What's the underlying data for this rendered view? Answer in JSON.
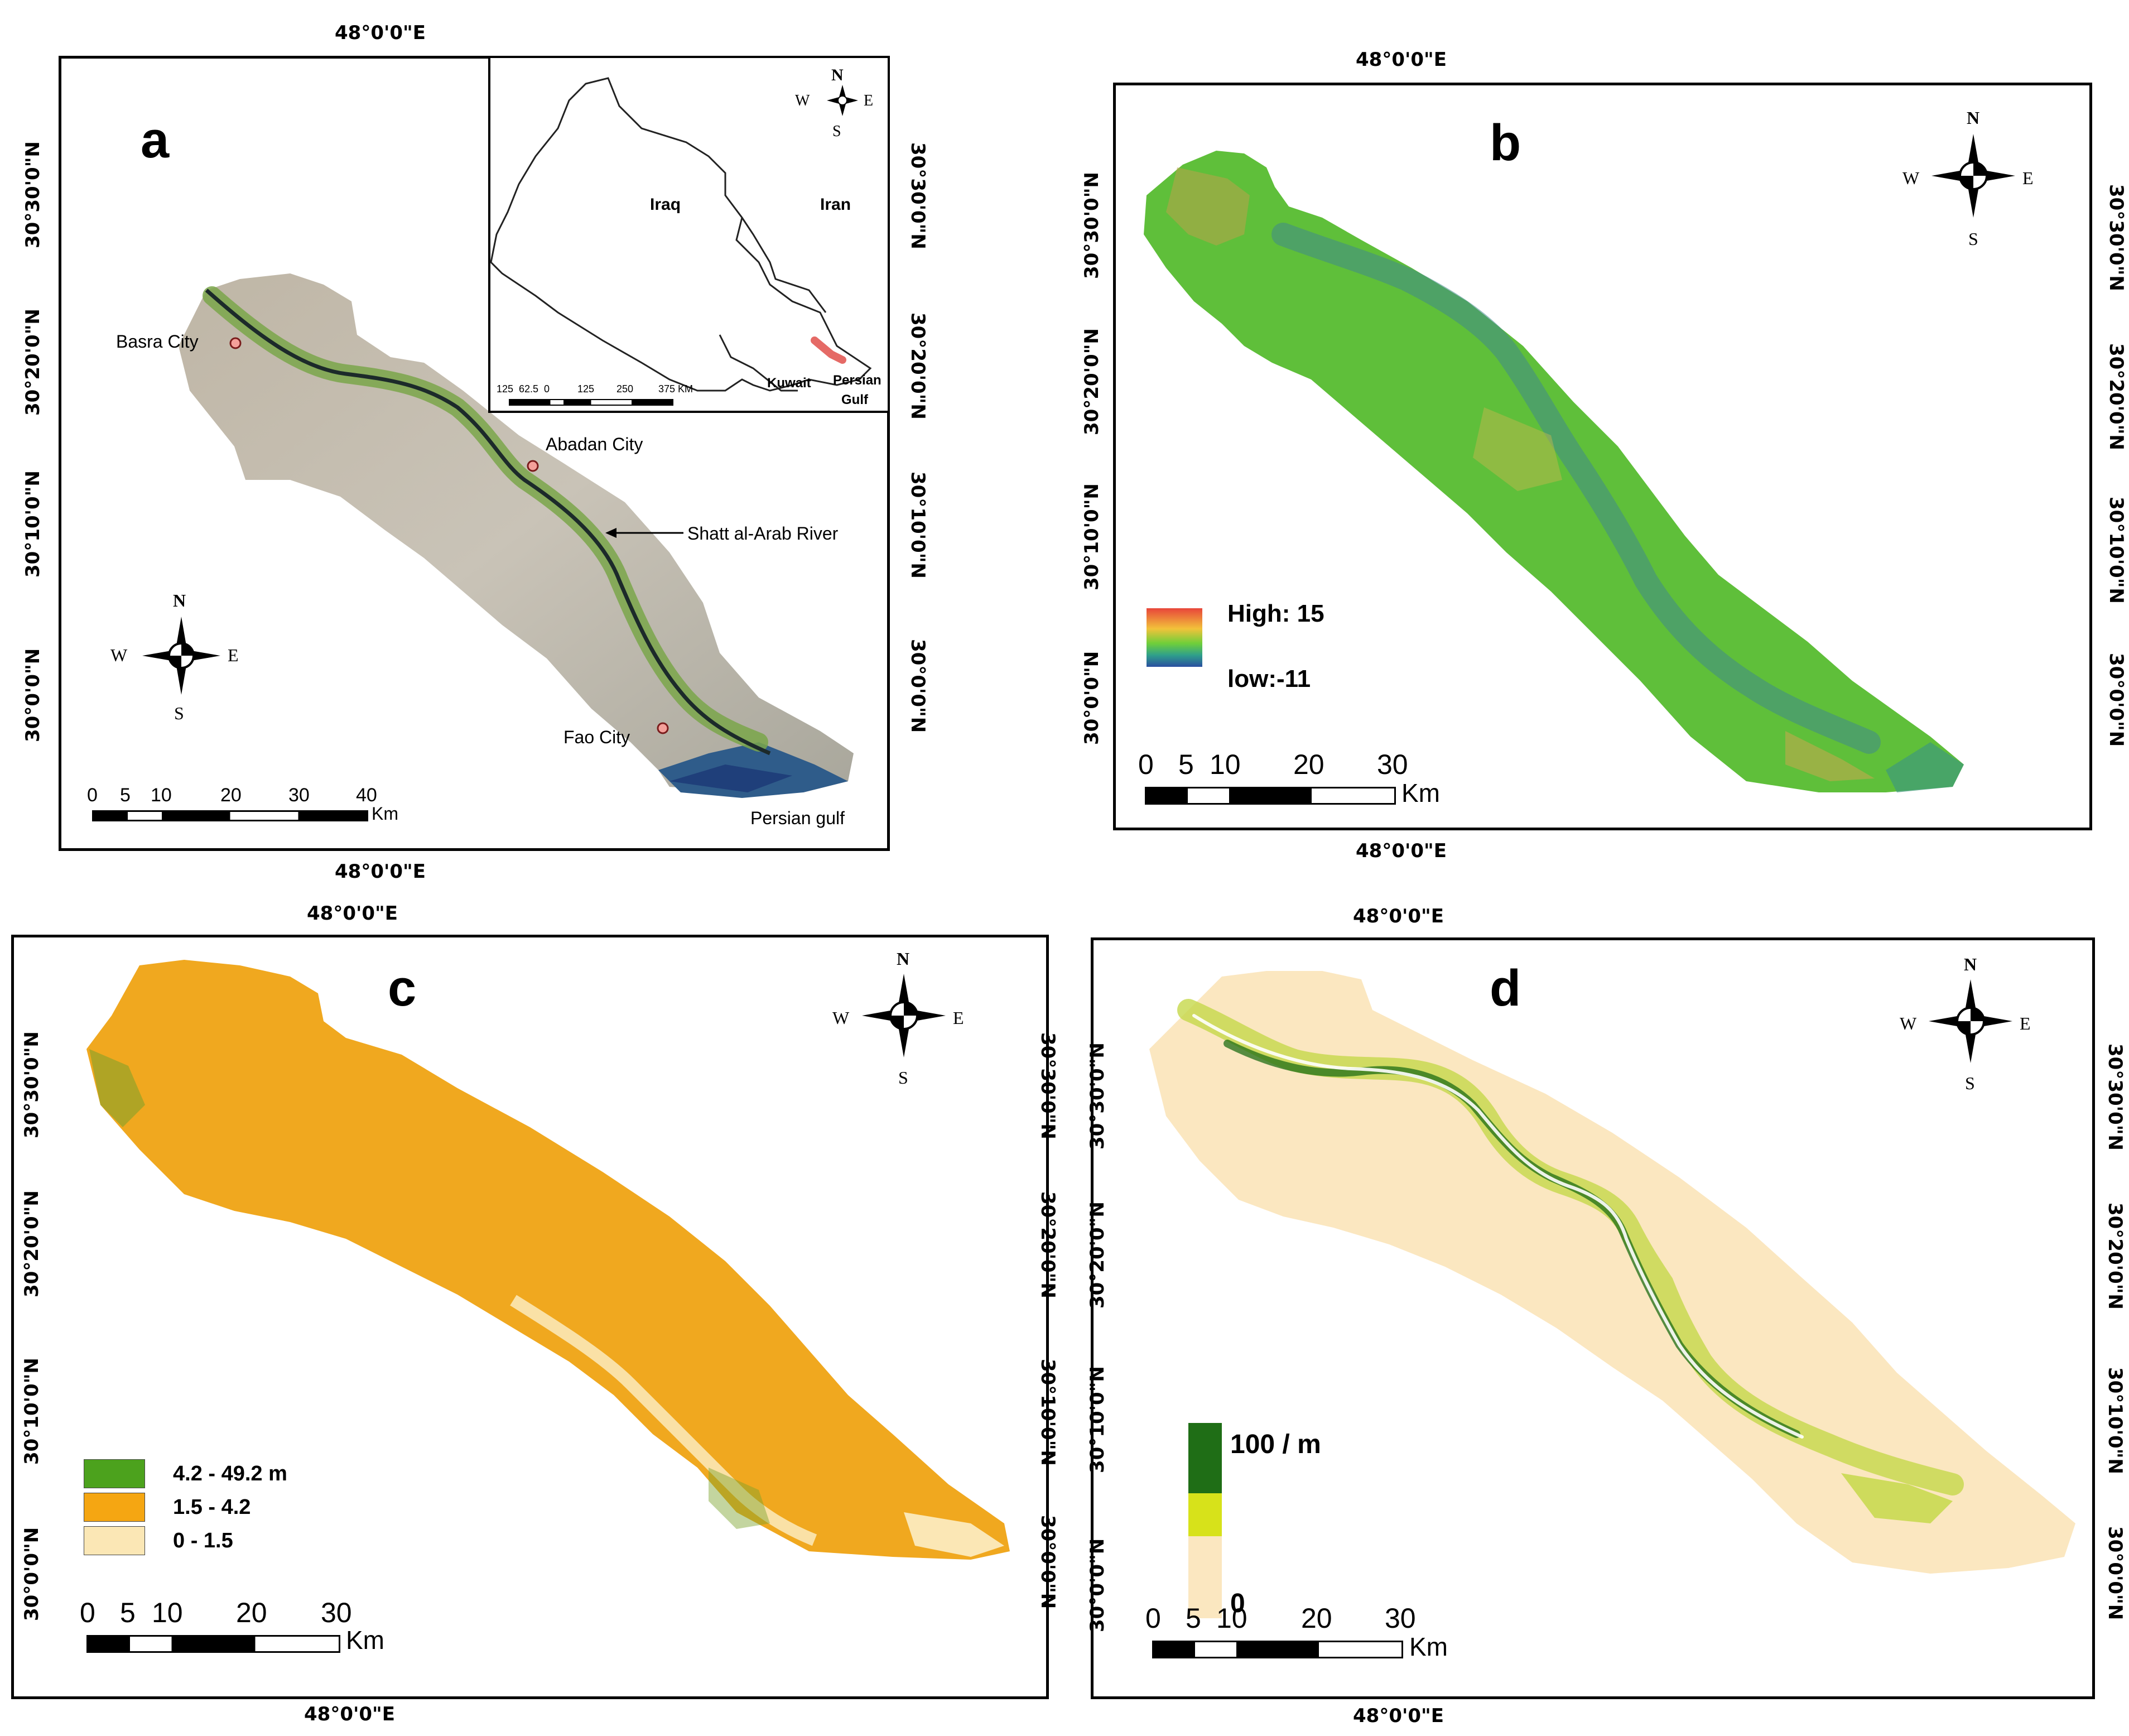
{
  "longitude_label": "48°0'0\"E",
  "panels": {
    "a": {
      "label": "a",
      "latitudes": [
        "30°30'0\"N",
        "30°20'0\"N",
        "30°10'0\"N",
        "30°0'0\"N"
      ],
      "cities": {
        "basra": "Basra City",
        "abadan": "Abadan City",
        "fao": "Fao City"
      },
      "river": "Shatt al-Arab River",
      "gulf": "Persian gulf",
      "inset": {
        "countries": {
          "iraq": "Iraq",
          "iran": "Iran",
          "kuwait": "Kuwait"
        },
        "gulf_line1": "Persian",
        "gulf_line2": "Gulf",
        "scale_ticks": [
          "125",
          "62.5",
          "0",
          "125",
          "250",
          "375 KM"
        ],
        "compass": {
          "n": "N",
          "s": "S",
          "e": "E",
          "w": "W"
        }
      },
      "compass": {
        "n": "N",
        "s": "S",
        "e": "E",
        "w": "W"
      },
      "scale_ticks": [
        "0",
        "5",
        "10",
        "20",
        "30",
        "40"
      ],
      "scale_unit": "Km"
    },
    "b": {
      "label": "b",
      "latitudes": [
        "30°30'0\"N",
        "30°20'0\"N",
        "30°10'0\"N",
        "30°0'0\"N"
      ],
      "legend_high": "High: 15",
      "legend_low": "low:-11",
      "compass": {
        "n": "N",
        "s": "S",
        "e": "E",
        "w": "W"
      },
      "scale_ticks": [
        "0",
        "5",
        "10",
        "20",
        "30"
      ],
      "scale_unit": "Km"
    },
    "c": {
      "label": "c",
      "latitudes": [
        "30°30'0\"N",
        "30°20'0\"N",
        "30°10'0\"N",
        "30°0'0\"N"
      ],
      "legend": [
        {
          "label": "4.2 - 49.2 m",
          "color": "#4ca21d"
        },
        {
          "label": "1.5 - 4.2",
          "color": "#f5a612"
        },
        {
          "label": "0 - 1.5",
          "color": "#fbe7b5"
        }
      ],
      "compass": {
        "n": "N",
        "s": "S",
        "e": "E",
        "w": "W"
      },
      "scale_ticks": [
        "0",
        "5",
        "10",
        "20",
        "30"
      ],
      "scale_unit": "Km"
    },
    "d": {
      "label": "d",
      "latitudes": [
        "30°30'0\"N",
        "30°20'0\"N",
        "30°10'0\"N",
        "30°0'0\"N"
      ],
      "legend_top": "100 / m",
      "legend_bottom": "0",
      "legend_colors": [
        "#1f6e16",
        "#d7e21a",
        "#fbe7c0"
      ],
      "compass": {
        "n": "N",
        "s": "S",
        "e": "E",
        "w": "W"
      },
      "scale_ticks": [
        "0",
        "5",
        "10",
        "20",
        "30"
      ],
      "scale_unit": "Km"
    }
  }
}
